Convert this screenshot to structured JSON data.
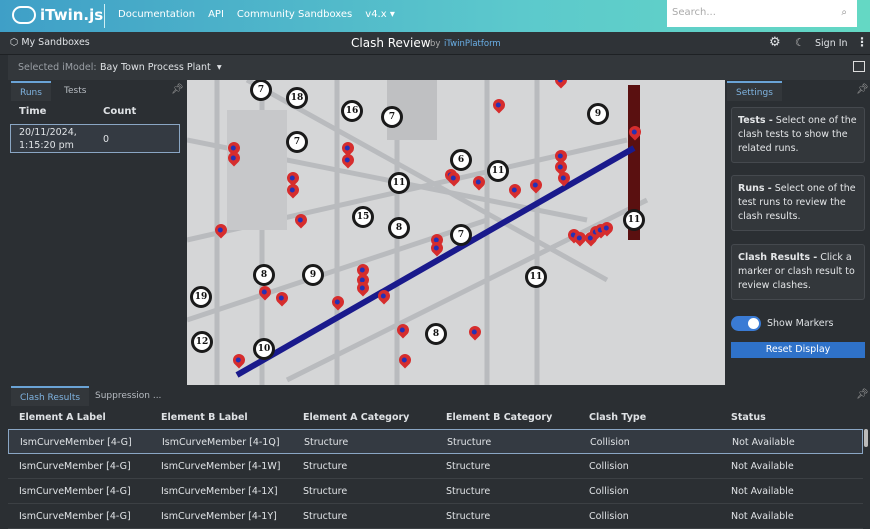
{
  "header": {
    "logo": "iTwin.js",
    "nav": [
      "Documentation",
      "API",
      "Community Sandboxes",
      "v4.x ▾"
    ],
    "search_placeholder": "Search..."
  },
  "toolbar": {
    "my_sandboxes": "My Sandboxes",
    "title": "Clash Review",
    "by": "by",
    "platform": "iTwinPlatform",
    "sign_in": "Sign In"
  },
  "imodel": {
    "label": "Selected iModel:",
    "value": "Bay Town Process Plant"
  },
  "left_panel": {
    "tabs": [
      "Runs",
      "Tests"
    ],
    "active_tab": "Runs",
    "columns": [
      "Time",
      "Count"
    ],
    "rows": [
      {
        "time": "20/11/2024, 1:15:20 pm",
        "count": "0"
      }
    ]
  },
  "viewport": {
    "labels": [
      "7",
      "18",
      "16",
      "7",
      "9",
      "7",
      "6",
      "11",
      "11",
      "15",
      "8",
      "7",
      "11",
      "8",
      "9",
      "11",
      "19",
      "8",
      "12",
      "10"
    ],
    "clash_line_color": "#1a1a8c",
    "marker_color": "#d62d2d"
  },
  "right_panel": {
    "tab": "Settings",
    "cards": [
      {
        "title": "Tests -",
        "text": " Select one of the clash tests to show the related runs."
      },
      {
        "title": "Runs -",
        "text": " Select one of the test runs to review the clash results."
      },
      {
        "title": "Clash Results -",
        "text": " Click a marker or clash result to review clashes."
      }
    ],
    "show_markers_label": "Show Markers",
    "show_markers": true,
    "reset_label": "Reset Display"
  },
  "bottom": {
    "tabs": [
      "Clash Results",
      "Suppression ..."
    ],
    "columns": [
      "Element A Label",
      "Element B Label",
      "Element A Category",
      "Element B Category",
      "Clash Type",
      "Status"
    ],
    "rows": [
      [
        "IsmCurveMember [4-G]",
        "IsmCurveMember [4-1Q]",
        "Structure",
        "Structure",
        "Collision",
        "Not Available"
      ],
      [
        "IsmCurveMember [4-G]",
        "IsmCurveMember [4-1W]",
        "Structure",
        "Structure",
        "Collision",
        "Not Available"
      ],
      [
        "IsmCurveMember [4-G]",
        "IsmCurveMember [4-1X]",
        "Structure",
        "Structure",
        "Collision",
        "Not Available"
      ],
      [
        "IsmCurveMember [4-G]",
        "IsmCurveMember [4-1Y]",
        "Structure",
        "Structure",
        "Collision",
        "Not Available"
      ]
    ]
  }
}
